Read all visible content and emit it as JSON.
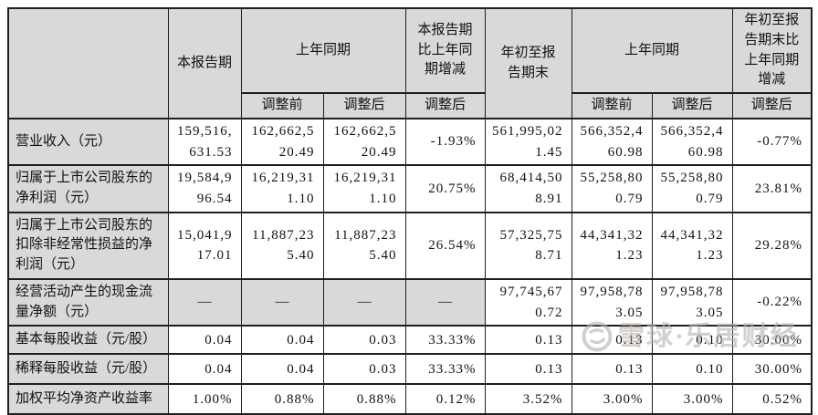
{
  "table": {
    "headers": {
      "corner": "",
      "current_period": "本报告期",
      "prior_period": "上年同期",
      "period_change": "本报告期\n比上年同\n期增减",
      "ytd": "年初至报\n告期末",
      "prior_period_ytd": "上年同期",
      "ytd_change": "年初至报\n告期末比\n上年同期\n增减",
      "before_adjust": "调整前",
      "after_adjust": "调整后"
    },
    "rows": [
      {
        "label": "营业收入（元）",
        "cells": [
          "159,516,631.53",
          "162,662,520.49",
          "162,662,520.49",
          "-1.93%",
          "561,995,021.45",
          "566,352,460.98",
          "566,352,460.98",
          "-0.77%"
        ]
      },
      {
        "label": "归属于上市公司股东的\n净利润（元）",
        "cells": [
          "19,584,996.54",
          "16,219,311.10",
          "16,219,311.10",
          "20.75%",
          "68,414,508.91",
          "55,258,800.79",
          "55,258,800.79",
          "23.81%"
        ]
      },
      {
        "label": "归属于上市公司股东的\n扣除非经常性损益的净\n利润（元）",
        "cells": [
          "15,041,917.01",
          "11,887,235.40",
          "11,887,235.40",
          "26.54%",
          "57,325,758.71",
          "44,341,321.23",
          "44,341,321.23",
          "29.28%"
        ]
      },
      {
        "label": "经营活动产生的现金流\n量净额（元）",
        "cells": [
          "—",
          "—",
          "—",
          "—",
          "97,745,670.72",
          "97,958,783.05",
          "97,958,783.05",
          "-0.22%"
        ]
      },
      {
        "label": "基本每股收益（元/股）",
        "cells": [
          "0.04",
          "0.04",
          "0.03",
          "33.33%",
          "0.13",
          "0.13",
          "0.10",
          "30.00%"
        ]
      },
      {
        "label": "稀释每股收益（元/股）",
        "cells": [
          "0.04",
          "0.04",
          "0.03",
          "33.33%",
          "0.13",
          "0.13",
          "0.10",
          "30.00%"
        ]
      },
      {
        "label": "加权平均净资产收益率",
        "cells": [
          "1.00%",
          "0.88%",
          "0.88%",
          "0.12%",
          "3.52%",
          "3.00%",
          "3.00%",
          "0.52%"
        ]
      }
    ]
  },
  "watermark": {
    "logo": "xueqiu-snowball-logo",
    "text": "雪球·乐居财经"
  },
  "colors": {
    "header_bg": "#d9d9d9",
    "border": "#1f1f1f",
    "watermark": "#b9b2ae",
    "page_bg": "#ffffff"
  }
}
